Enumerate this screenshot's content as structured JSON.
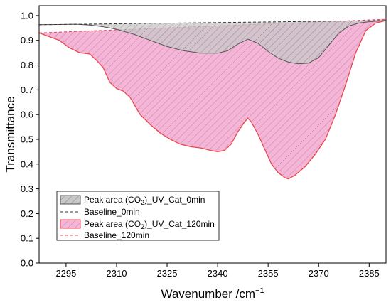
{
  "chart_data": {
    "type": "area",
    "xlabel": "Wavenumber /cm",
    "xlabel_sup": "−1",
    "ylabel": "Transmittance",
    "xlim": [
      2287,
      2390
    ],
    "ylim": [
      0.0,
      1.04
    ],
    "x_ticks": [
      2295,
      2310,
      2325,
      2340,
      2355,
      2370,
      2385
    ],
    "y_ticks": [
      0.0,
      0.1,
      0.2,
      0.3,
      0.4,
      0.5,
      0.6,
      0.7,
      0.8,
      0.9,
      1.0
    ],
    "y_tick_labels": [
      "0.0",
      "0.1",
      "0.2",
      "0.3",
      "0.4",
      "0.5",
      "0.6",
      "0.7",
      "0.8",
      "0.9",
      "1.0"
    ],
    "grid": false,
    "legend_position": "lower-left",
    "series": [
      {
        "name_parts": [
          "Peak area (CO",
          "2",
          ")_UV_Cat_0min"
        ],
        "kind": "peak-area",
        "fill": "#c8c8c8",
        "stroke": "#555555",
        "hatch": "#666666",
        "x": [
          2287,
          2293,
          2298,
          2302,
          2306,
          2310,
          2315,
          2320,
          2325,
          2330,
          2335,
          2340,
          2343,
          2346,
          2349,
          2352,
          2355,
          2358,
          2361,
          2364,
          2367,
          2370,
          2373,
          2376,
          2379,
          2382,
          2385,
          2388,
          2390
        ],
        "y": [
          0.963,
          0.964,
          0.965,
          0.962,
          0.955,
          0.945,
          0.925,
          0.9,
          0.875,
          0.858,
          0.848,
          0.848,
          0.858,
          0.885,
          0.905,
          0.888,
          0.855,
          0.828,
          0.812,
          0.805,
          0.808,
          0.83,
          0.88,
          0.93,
          0.958,
          0.97,
          0.975,
          0.978,
          0.98
        ]
      },
      {
        "name": "Baseline_0min",
        "kind": "baseline",
        "stroke": "#333333",
        "x": [
          2287,
          2390
        ],
        "y": [
          0.963,
          0.98
        ]
      },
      {
        "name_parts": [
          "Peak area (CO",
          "2",
          ")_UV_Cat_120min"
        ],
        "kind": "peak-area",
        "fill": "#f4b6d6",
        "stroke": "#e8474f",
        "hatch": "#c06090",
        "x": [
          2287,
          2290,
          2293,
          2296,
          2299,
          2302,
          2304,
          2306,
          2308,
          2310,
          2312,
          2314,
          2317,
          2320,
          2323,
          2326,
          2329,
          2332,
          2335,
          2338,
          2340,
          2342,
          2344,
          2346,
          2348,
          2349,
          2350,
          2352,
          2354,
          2356,
          2358,
          2360,
          2361,
          2363,
          2366,
          2369,
          2372,
          2375,
          2378,
          2381,
          2384,
          2387,
          2390
        ],
        "y": [
          0.93,
          0.915,
          0.9,
          0.87,
          0.85,
          0.845,
          0.82,
          0.79,
          0.73,
          0.705,
          0.695,
          0.67,
          0.6,
          0.56,
          0.525,
          0.5,
          0.48,
          0.47,
          0.465,
          0.455,
          0.45,
          0.455,
          0.48,
          0.53,
          0.57,
          0.585,
          0.57,
          0.52,
          0.46,
          0.4,
          0.365,
          0.345,
          0.34,
          0.355,
          0.39,
          0.44,
          0.5,
          0.6,
          0.72,
          0.85,
          0.94,
          0.97,
          0.98
        ]
      },
      {
        "name": "Baseline_120min",
        "kind": "baseline",
        "stroke": "#e8474f",
        "x": [
          2287,
          2390
        ],
        "y": [
          0.93,
          0.985
        ]
      }
    ]
  }
}
